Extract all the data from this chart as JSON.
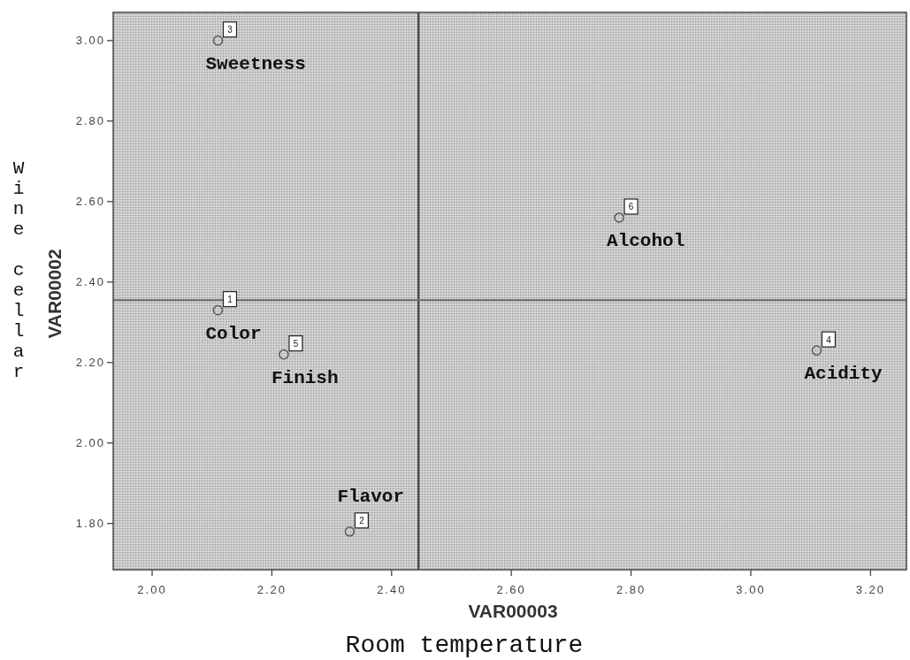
{
  "chart_data": {
    "type": "scatter",
    "xlabel": "VAR00003",
    "ylabel": "VAR00002",
    "x": [
      2.11,
      2.33,
      2.11,
      3.11,
      2.22,
      2.78
    ],
    "values": [
      2.33,
      1.78,
      3.0,
      2.23,
      2.22,
      2.56
    ],
    "color": "#5a5a5a",
    "marker": "circle",
    "xlim": [
      1.935,
      3.26
    ],
    "ylim": [
      1.685,
      3.07
    ],
    "xticks": [
      {
        "value": 2.0,
        "label": "2.00"
      },
      {
        "value": 2.2,
        "label": "2.20"
      },
      {
        "value": 2.4,
        "label": "2.40"
      },
      {
        "value": 2.6,
        "label": "2.60"
      },
      {
        "value": 2.8,
        "label": "2.80"
      },
      {
        "value": 3.0,
        "label": "3.00"
      },
      {
        "value": 3.2,
        "label": "3.20"
      }
    ],
    "yticks": [
      {
        "value": 1.8,
        "label": "1.80"
      },
      {
        "value": 2.0,
        "label": "2.00"
      },
      {
        "value": 2.2,
        "label": "2.20"
      },
      {
        "value": 2.4,
        "label": "2.40"
      },
      {
        "value": 2.6,
        "label": "2.60"
      },
      {
        "value": 2.8,
        "label": "2.80"
      },
      {
        "value": 3.0,
        "label": "3.00"
      }
    ],
    "ref_lines": [
      {
        "axis": "x",
        "value": 2.445,
        "color": "#3a3a3a"
      },
      {
        "axis": "y",
        "value": 2.355,
        "color": "#686868"
      }
    ],
    "annotations": [
      {
        "text": "1",
        "x": 2.11,
        "y": 2.33
      },
      {
        "text": "Color",
        "x": 2.11,
        "y": 2.33
      },
      {
        "text": "2",
        "x": 2.33,
        "y": 1.78
      },
      {
        "text": "Flavor",
        "x": 2.33,
        "y": 1.78
      },
      {
        "text": "3",
        "x": 2.11,
        "y": 3.0
      },
      {
        "text": "Sweetness",
        "x": 2.11,
        "y": 3.0
      },
      {
        "text": "4",
        "x": 3.11,
        "y": 2.23
      },
      {
        "text": "Acidity",
        "x": 3.11,
        "y": 2.23
      },
      {
        "text": "5",
        "x": 2.22,
        "y": 2.22
      },
      {
        "text": "Finish",
        "x": 2.22,
        "y": 2.22
      },
      {
        "text": "6",
        "x": 2.78,
        "y": 2.56
      },
      {
        "text": "Alcohol",
        "x": 2.78,
        "y": 2.56
      },
      "Room temperature",
      "Wine cellar"
    ]
  }
}
